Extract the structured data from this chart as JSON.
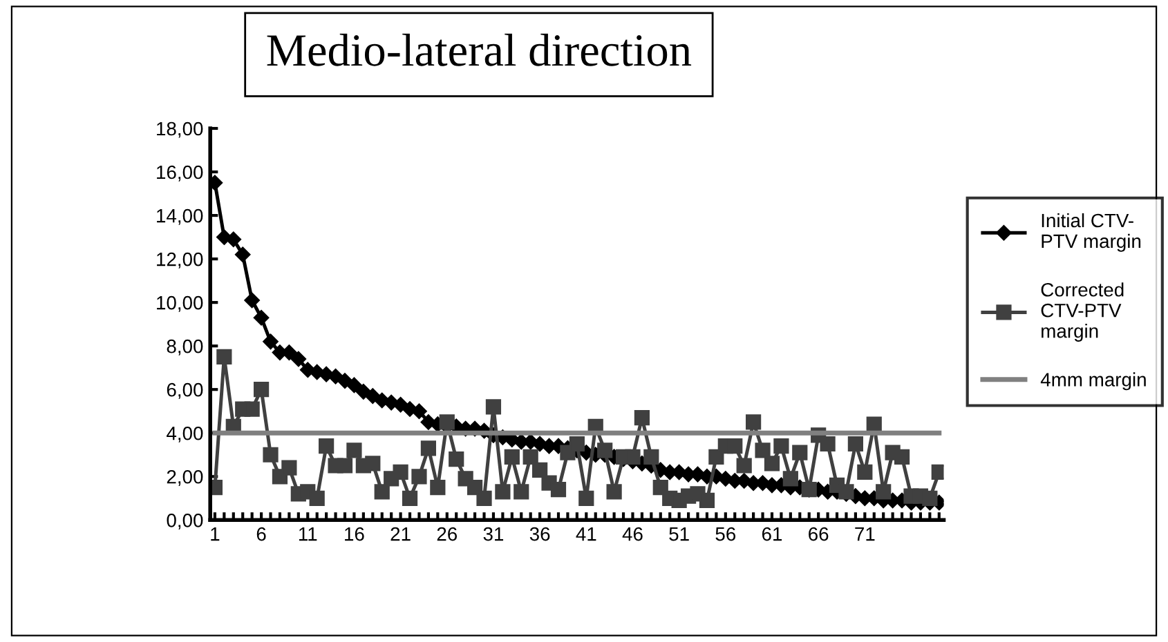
{
  "chart_data": {
    "type": "line",
    "title": "Medio-lateral direction",
    "categories": [
      "1",
      null,
      null,
      null,
      null,
      "6",
      null,
      null,
      null,
      null,
      "11",
      null,
      null,
      null,
      null,
      "16",
      null,
      null,
      null,
      null,
      "21",
      null,
      null,
      null,
      null,
      "26",
      null,
      null,
      null,
      null,
      "31",
      null,
      null,
      null,
      null,
      "36",
      null,
      null,
      null,
      null,
      "41",
      null,
      null,
      null,
      null,
      "46",
      null,
      null,
      null,
      null,
      "51",
      null,
      null,
      null,
      null,
      "56",
      null,
      null,
      null,
      null,
      "61",
      null,
      null,
      null,
      null,
      "66",
      null,
      null,
      null,
      null,
      "71",
      null,
      null,
      null,
      null,
      null,
      null,
      null,
      null
    ],
    "series": [
      {
        "name": "Initial CTV-PTV margin",
        "color": "#000000",
        "marker": "diamond",
        "values": [
          15.5,
          13.0,
          12.9,
          12.2,
          10.1,
          9.3,
          8.2,
          7.7,
          7.7,
          7.4,
          6.9,
          6.8,
          6.7,
          6.6,
          6.4,
          6.2,
          5.9,
          5.7,
          5.5,
          5.4,
          5.3,
          5.1,
          5.0,
          4.5,
          4.4,
          4.3,
          4.3,
          4.2,
          4.2,
          4.1,
          3.9,
          3.8,
          3.7,
          3.6,
          3.6,
          3.5,
          3.4,
          3.4,
          3.3,
          3.2,
          3.1,
          3.0,
          3.0,
          2.9,
          2.8,
          2.7,
          2.6,
          2.5,
          2.3,
          2.2,
          2.2,
          2.1,
          2.1,
          2.0,
          2.0,
          1.9,
          1.8,
          1.8,
          1.7,
          1.7,
          1.6,
          1.6,
          1.5,
          1.5,
          1.4,
          1.4,
          1.3,
          1.3,
          1.2,
          1.1,
          1.0,
          1.0,
          0.9,
          0.9,
          0.9,
          0.8,
          0.8,
          0.8,
          0.8
        ]
      },
      {
        "name": "Corrected CTV-PTV margin",
        "color": "#404040",
        "marker": "square",
        "values": [
          1.5,
          7.5,
          4.3,
          5.1,
          5.1,
          6.0,
          3.0,
          2.0,
          2.4,
          1.2,
          1.3,
          1.0,
          3.4,
          2.5,
          2.5,
          3.2,
          2.5,
          2.6,
          1.3,
          1.9,
          2.2,
          1.0,
          2.0,
          3.3,
          1.5,
          4.5,
          2.8,
          1.9,
          1.5,
          1.0,
          5.2,
          1.3,
          2.9,
          1.3,
          2.9,
          2.3,
          1.7,
          1.4,
          3.1,
          3.5,
          1.0,
          4.3,
          3.2,
          1.3,
          2.9,
          2.9,
          4.7,
          2.9,
          1.5,
          1.0,
          0.9,
          1.1,
          1.2,
          0.9,
          2.9,
          3.4,
          3.4,
          2.5,
          4.5,
          3.2,
          2.6,
          3.4,
          1.9,
          3.1,
          1.4,
          3.9,
          3.5,
          1.6,
          1.3,
          3.5,
          2.2,
          4.4,
          1.3,
          3.1,
          2.9,
          1.1,
          1.1,
          1.0,
          2.2
        ]
      },
      {
        "name": "4mm margin",
        "color": "#808080",
        "marker": "none",
        "values": [
          4,
          4,
          4,
          4,
          4,
          4,
          4,
          4,
          4,
          4,
          4,
          4,
          4,
          4,
          4,
          4,
          4,
          4,
          4,
          4,
          4,
          4,
          4,
          4,
          4,
          4,
          4,
          4,
          4,
          4,
          4,
          4,
          4,
          4,
          4,
          4,
          4,
          4,
          4,
          4,
          4,
          4,
          4,
          4,
          4,
          4,
          4,
          4,
          4,
          4,
          4,
          4,
          4,
          4,
          4,
          4,
          4,
          4,
          4,
          4,
          4,
          4,
          4,
          4,
          4,
          4,
          4,
          4,
          4,
          4,
          4,
          4,
          4,
          4,
          4,
          4,
          4,
          4,
          4
        ]
      }
    ],
    "ylim": [
      0,
      18
    ],
    "yticks": [
      {
        "value": 0,
        "label": "0,00"
      },
      {
        "value": 2,
        "label": "2,00"
      },
      {
        "value": 4,
        "label": "4,00"
      },
      {
        "value": 6,
        "label": "6,00"
      },
      {
        "value": 8,
        "label": "8,00"
      },
      {
        "value": 10,
        "label": "10,00"
      },
      {
        "value": 12,
        "label": "12,00"
      },
      {
        "value": 14,
        "label": "14,00"
      },
      {
        "value": 16,
        "label": "16,00"
      },
      {
        "value": 18,
        "label": "18,00"
      }
    ],
    "grid": false,
    "legend": "right"
  }
}
